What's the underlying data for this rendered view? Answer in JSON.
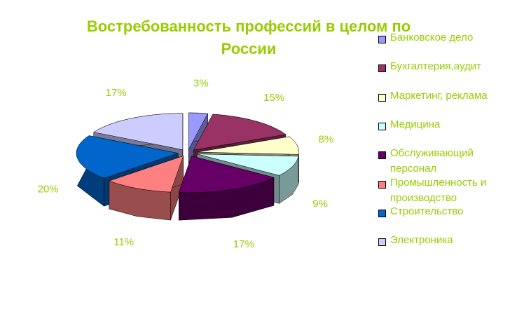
{
  "chart_data": {
    "type": "pie3d",
    "title": "Востребованность профессий в целом по России",
    "categories": [
      "Банковское дело",
      "Бухгалтерия,аудит",
      "Маркетинг, реклама",
      "Медицина",
      "Обслуживающий персонал",
      "Промышленность и производство",
      "Строительство",
      "Электроника"
    ],
    "values": [
      3,
      15,
      8,
      9,
      17,
      11,
      20,
      17
    ],
    "value_labels": [
      "3%",
      "15%",
      "8%",
      "9%",
      "17%",
      "11%",
      "20%",
      "17%"
    ],
    "colors": [
      "#9999ff",
      "#993366",
      "#ffffcc",
      "#ccffff",
      "#660066",
      "#ff8080",
      "#0066cc",
      "#ccccff"
    ],
    "legend": "right"
  }
}
